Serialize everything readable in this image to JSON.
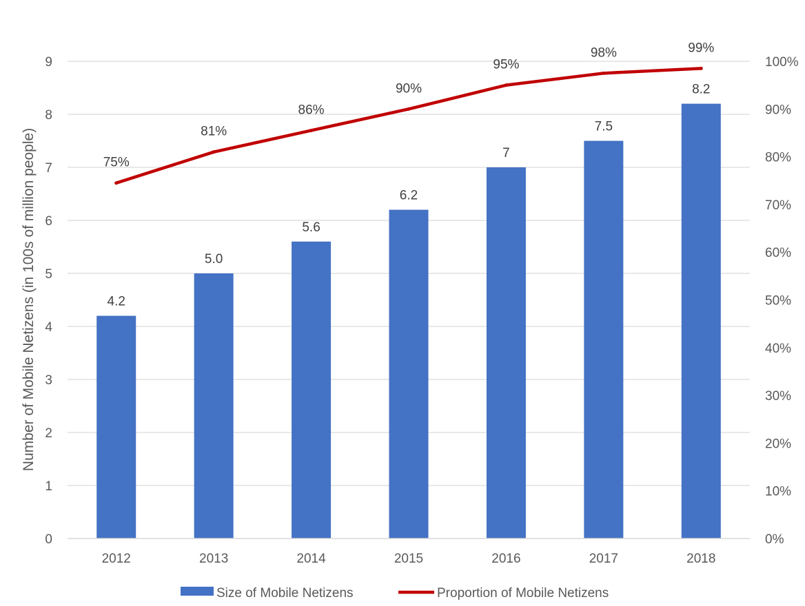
{
  "chart_data": {
    "type": "bar+line",
    "categories": [
      "2012",
      "2013",
      "2014",
      "2015",
      "2016",
      "2017",
      "2018"
    ],
    "series": [
      {
        "name": "Size of Mobile Netizens",
        "type": "bar",
        "axis": "left",
        "values": [
          4.2,
          5.0,
          5.6,
          6.2,
          7,
          7.5,
          8.2
        ],
        "labels": [
          "4.2",
          "5.0",
          "5.6",
          "6.2",
          "7",
          "7.5",
          "8.2"
        ],
        "color": "#4472C4"
      },
      {
        "name": "Proportion of Mobile Netizens",
        "type": "line",
        "axis": "right",
        "values": [
          0.745,
          0.81,
          0.855,
          0.9,
          0.95,
          0.975,
          0.985
        ],
        "labels": [
          "75%",
          "81%",
          "86%",
          "90%",
          "95%",
          "98%",
          "99%"
        ],
        "color": "#C00000"
      }
    ],
    "ylabel": "Number of Mobile Netizens (in 100s of million people)",
    "xlabel": "",
    "ylim": [
      0,
      9
    ],
    "yticks": [
      "0",
      "1",
      "2",
      "3",
      "4",
      "5",
      "6",
      "7",
      "8",
      "9"
    ],
    "y2lim": [
      0,
      1
    ],
    "y2ticks": [
      "0%",
      "10%",
      "20%",
      "30%",
      "40%",
      "50%",
      "60%",
      "70%",
      "80%",
      "90%",
      "100%"
    ],
    "grid": true,
    "legend": "bottom"
  }
}
